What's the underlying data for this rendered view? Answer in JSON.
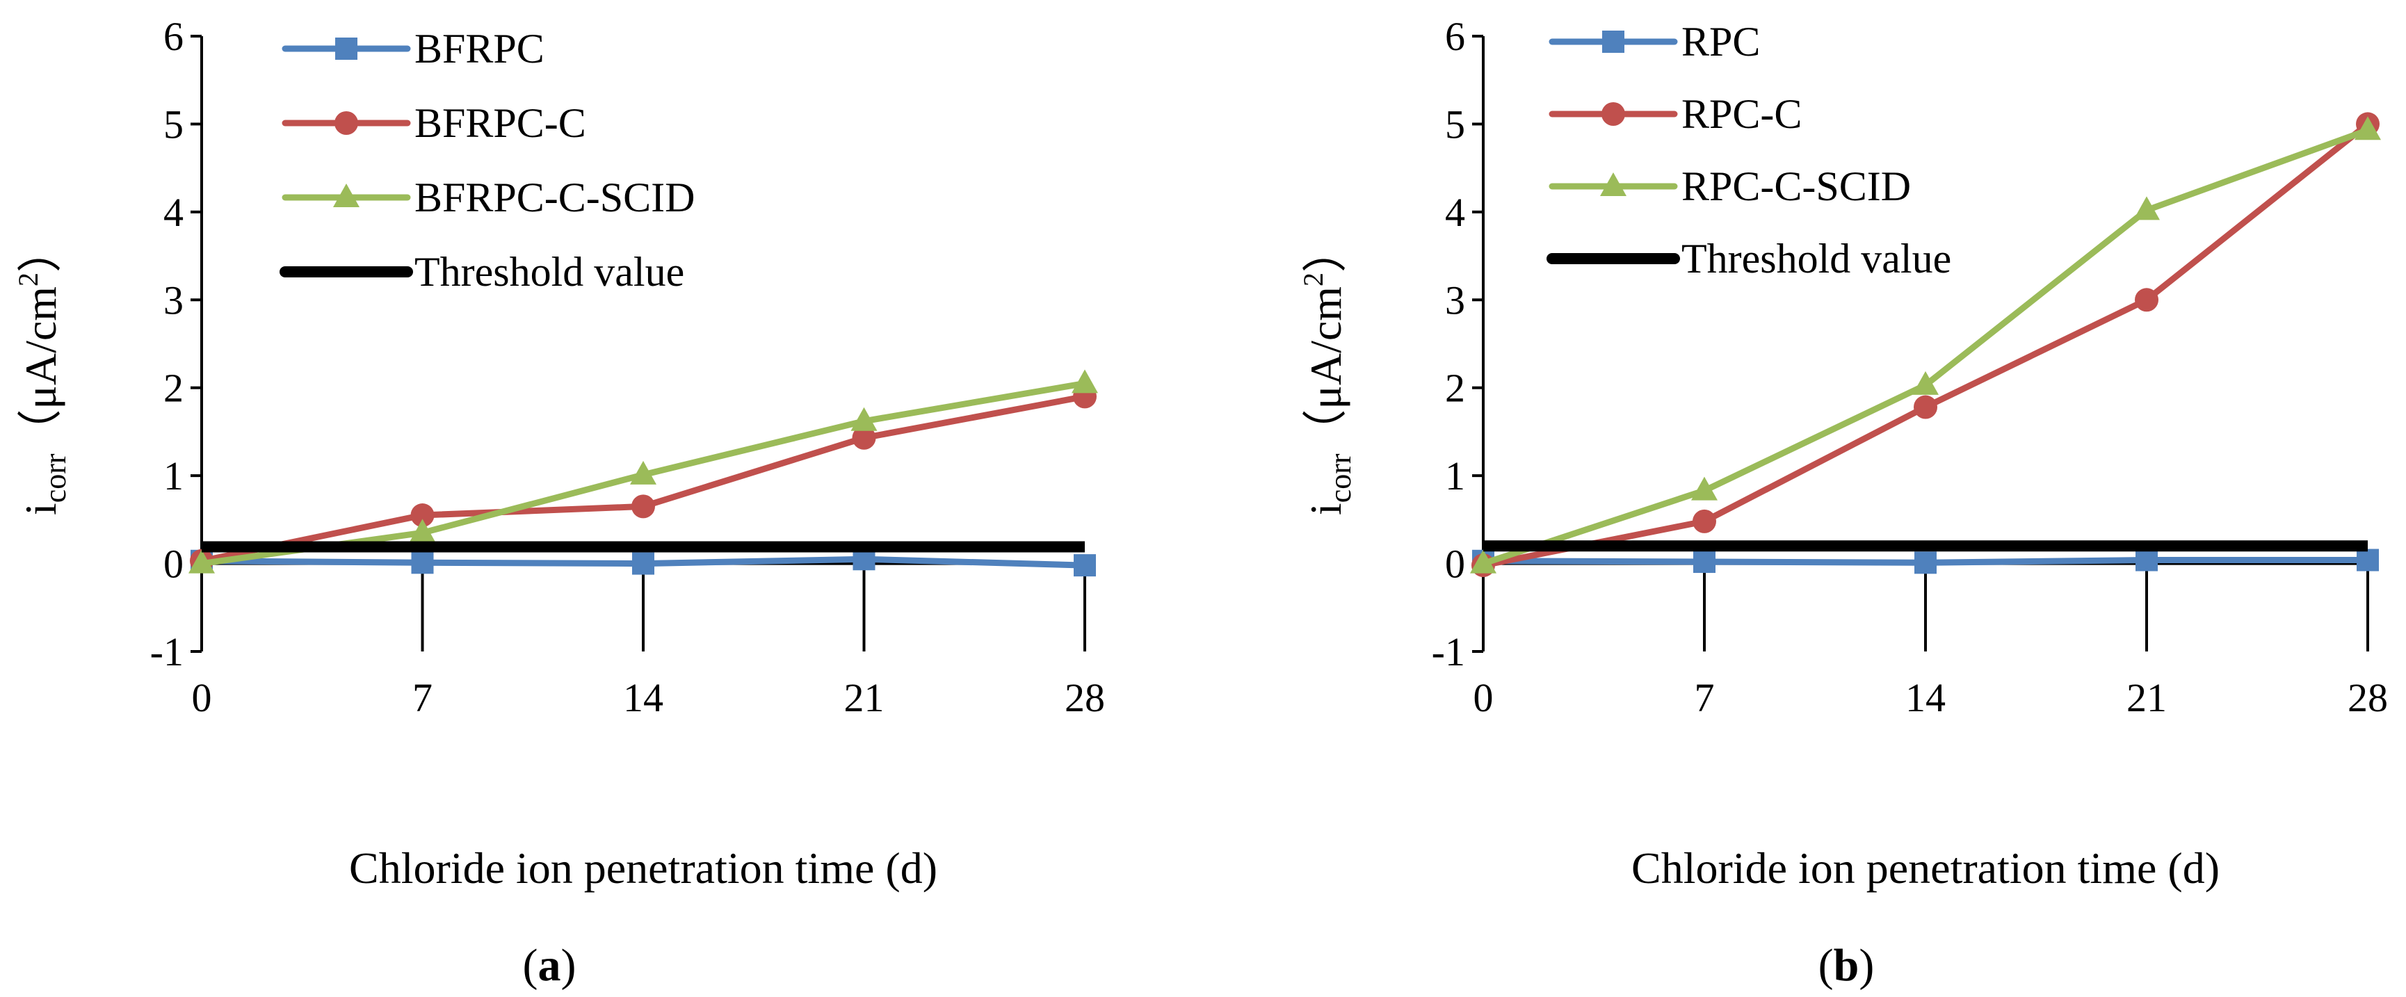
{
  "chart_data": [
    {
      "type": "line",
      "panel_label": "a",
      "title": "",
      "xlabel": "Chloride ion penetration time (d)",
      "ylabel": "i_corr (μA/cm²)",
      "ylabel_parts": {
        "main": "i",
        "sub": "corr",
        "unit_open": "（μA/cm",
        "sup": "2",
        "unit_close": "）"
      },
      "categories": [
        "0",
        "7",
        "14",
        "21",
        "28"
      ],
      "x": [
        0,
        7,
        14,
        21,
        28
      ],
      "ylim": [
        -1,
        6
      ],
      "yticks": [
        "-1",
        "0",
        "1",
        "2",
        "3",
        "4",
        "5",
        "6"
      ],
      "legend_position": "top-left",
      "series": [
        {
          "name": "BFRPC",
          "color": "#4f81bd",
          "marker": "square",
          "values": [
            0.03,
            0.01,
            0.0,
            0.05,
            -0.02
          ]
        },
        {
          "name": "BFRPC-C",
          "color": "#c0504d",
          "marker": "circle",
          "values": [
            0.03,
            0.55,
            0.65,
            1.43,
            1.9
          ]
        },
        {
          "name": "BFRPC-C-SCID",
          "color": "#9bbb59",
          "marker": "triangle",
          "values": [
            0.0,
            0.35,
            1.01,
            1.62,
            2.05
          ]
        },
        {
          "name": "Threshold value",
          "color": "#000000",
          "marker": "none",
          "values": [
            0.19,
            0.19,
            0.19,
            0.19,
            0.19
          ]
        }
      ]
    },
    {
      "type": "line",
      "panel_label": "b",
      "title": "",
      "xlabel": "Chloride ion penetration time (d)",
      "ylabel": "i_corr (μA/cm²)",
      "ylabel_parts": {
        "main": "i",
        "sub": "corr",
        "unit_open": "（μA/cm",
        "sup": "2",
        "unit_close": "）"
      },
      "categories": [
        "0",
        "7",
        "14",
        "21",
        "28"
      ],
      "x": [
        0,
        7,
        14,
        21,
        28
      ],
      "ylim": [
        -1,
        6
      ],
      "yticks": [
        "-1",
        "0",
        "1",
        "2",
        "3",
        "4",
        "5",
        "6"
      ],
      "legend_position": "top-left",
      "series": [
        {
          "name": "RPC",
          "color": "#4f81bd",
          "marker": "square",
          "values": [
            0.03,
            0.02,
            0.01,
            0.04,
            0.04
          ]
        },
        {
          "name": "RPC-C",
          "color": "#c0504d",
          "marker": "circle",
          "values": [
            -0.02,
            0.48,
            1.78,
            3.0,
            5.0
          ]
        },
        {
          "name": "RPC-C-SCID",
          "color": "#9bbb59",
          "marker": "triangle",
          "values": [
            0.0,
            0.83,
            2.03,
            4.02,
            4.93
          ]
        },
        {
          "name": "Threshold value",
          "color": "#000000",
          "marker": "none",
          "values": [
            0.2,
            0.2,
            0.2,
            0.2,
            0.2
          ]
        }
      ]
    }
  ]
}
